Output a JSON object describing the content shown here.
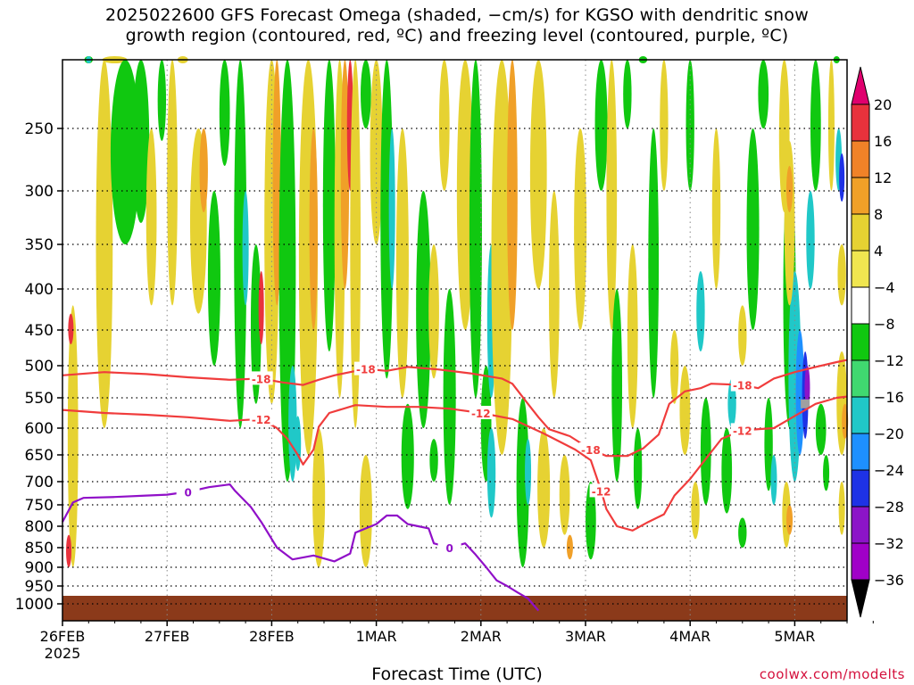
{
  "title": {
    "line1": "2025022600 GFS Forecast Omega (shaded, −cm/s) for KGSO with dendritic snow",
    "line2": "growth region (contoured, red, ºC) and freezing level (contoured, purple, ºC)"
  },
  "xlabel": "Forecast Time (UTC)",
  "credit": "coolwx.com/modelts",
  "chart_data": {
    "type": "heatmap",
    "x_ticks": [
      "26FEB",
      "27FEB",
      "28FEB",
      "1MAR",
      "2MAR",
      "3MAR",
      "4MAR",
      "5MAR"
    ],
    "x_tick_sub": "2025",
    "x_range_days": [
      0,
      7.5
    ],
    "y_ticks": [
      250,
      300,
      350,
      400,
      450,
      500,
      550,
      600,
      650,
      700,
      750,
      800,
      850,
      900,
      950,
      1000
    ],
    "y_range_hpa": [
      1020,
      200
    ],
    "colorbar": {
      "labels": [
        "20",
        "16",
        "12",
        "8",
        "4",
        "−4",
        "−8",
        "−12",
        "−16",
        "−20",
        "−24",
        "−28",
        "−32",
        "−36"
      ],
      "colors": [
        "#e0006e",
        "#e8323c",
        "#f08228",
        "#f0a028",
        "#e6d232",
        "#f0e650",
        "#ffffff",
        "#10c810",
        "#40d870",
        "#20c8c8",
        "#1e90ff",
        "#1e32e6",
        "#8c14c8",
        "#a000c8",
        "#a0a0a0",
        "#000000"
      ]
    },
    "contours": [
      {
        "label": "-18",
        "color": "#f03c3c",
        "points": [
          [
            0.0,
            515
          ],
          [
            0.4,
            510
          ],
          [
            0.8,
            513
          ],
          [
            1.2,
            518
          ],
          [
            1.6,
            522
          ],
          [
            1.9,
            520
          ],
          [
            2.1,
            526
          ],
          [
            2.3,
            530
          ],
          [
            2.45,
            522
          ],
          [
            2.6,
            515
          ],
          [
            2.9,
            505
          ],
          [
            3.1,
            508
          ],
          [
            3.3,
            502
          ],
          [
            3.6,
            506
          ],
          [
            3.9,
            512
          ],
          [
            4.2,
            520
          ],
          [
            4.3,
            528
          ],
          [
            4.45,
            560
          ],
          [
            4.55,
            582
          ],
          [
            4.65,
            602
          ],
          [
            4.85,
            615
          ],
          [
            5.05,
            640
          ],
          [
            5.2,
            652
          ],
          [
            5.4,
            652
          ],
          [
            5.55,
            638
          ],
          [
            5.7,
            612
          ],
          [
            5.8,
            560
          ],
          [
            5.95,
            540
          ],
          [
            6.1,
            535
          ],
          [
            6.2,
            528
          ],
          [
            6.5,
            530
          ],
          [
            6.65,
            535
          ],
          [
            6.8,
            520
          ],
          [
            7.0,
            510
          ],
          [
            7.2,
            502
          ],
          [
            7.4,
            495
          ],
          [
            7.5,
            492
          ]
        ]
      },
      {
        "label": "-12",
        "color": "#f03c3c",
        "points": [
          [
            0.0,
            570
          ],
          [
            0.4,
            575
          ],
          [
            0.8,
            578
          ],
          [
            1.2,
            582
          ],
          [
            1.6,
            588
          ],
          [
            1.9,
            585
          ],
          [
            2.05,
            600
          ],
          [
            2.15,
            620
          ],
          [
            2.25,
            650
          ],
          [
            2.3,
            668
          ],
          [
            2.4,
            640
          ],
          [
            2.45,
            598
          ],
          [
            2.55,
            575
          ],
          [
            2.8,
            562
          ],
          [
            3.1,
            565
          ],
          [
            3.4,
            565
          ],
          [
            3.7,
            568
          ],
          [
            4.0,
            575
          ],
          [
            4.3,
            585
          ],
          [
            4.6,
            610
          ],
          [
            4.9,
            640
          ],
          [
            5.05,
            660
          ],
          [
            5.15,
            720
          ],
          [
            5.2,
            760
          ],
          [
            5.3,
            800
          ],
          [
            5.45,
            810
          ],
          [
            5.6,
            790
          ],
          [
            5.75,
            772
          ],
          [
            5.85,
            730
          ],
          [
            6.0,
            695
          ],
          [
            6.2,
            645
          ],
          [
            6.3,
            620
          ],
          [
            6.5,
            604
          ],
          [
            6.8,
            600
          ],
          [
            7.0,
            580
          ],
          [
            7.2,
            560
          ],
          [
            7.4,
            550
          ],
          [
            7.5,
            548
          ]
        ]
      },
      {
        "label": "0",
        "color": "#9010c8",
        "points": [
          [
            0.0,
            790
          ],
          [
            0.1,
            745
          ],
          [
            0.2,
            735
          ],
          [
            0.5,
            733
          ],
          [
            0.8,
            730
          ],
          [
            1.0,
            728
          ],
          [
            1.2,
            722
          ],
          [
            1.4,
            712
          ],
          [
            1.6,
            706
          ],
          [
            1.65,
            720
          ],
          [
            1.8,
            755
          ],
          [
            1.9,
            790
          ],
          [
            2.05,
            850
          ],
          [
            2.2,
            880
          ],
          [
            2.4,
            870
          ],
          [
            2.6,
            885
          ],
          [
            2.75,
            865
          ],
          [
            2.8,
            815
          ],
          [
            2.9,
            805
          ],
          [
            3.0,
            795
          ],
          [
            3.1,
            775
          ],
          [
            3.2,
            775
          ],
          [
            3.3,
            795
          ],
          [
            3.4,
            800
          ],
          [
            3.5,
            805
          ],
          [
            3.55,
            840
          ],
          [
            3.7,
            850
          ],
          [
            3.85,
            840
          ],
          [
            3.95,
            868
          ],
          [
            4.05,
            900
          ],
          [
            4.15,
            935
          ],
          [
            4.25,
            950
          ],
          [
            4.35,
            968
          ],
          [
            4.45,
            985
          ],
          [
            4.55,
            1008
          ]
        ]
      }
    ]
  }
}
